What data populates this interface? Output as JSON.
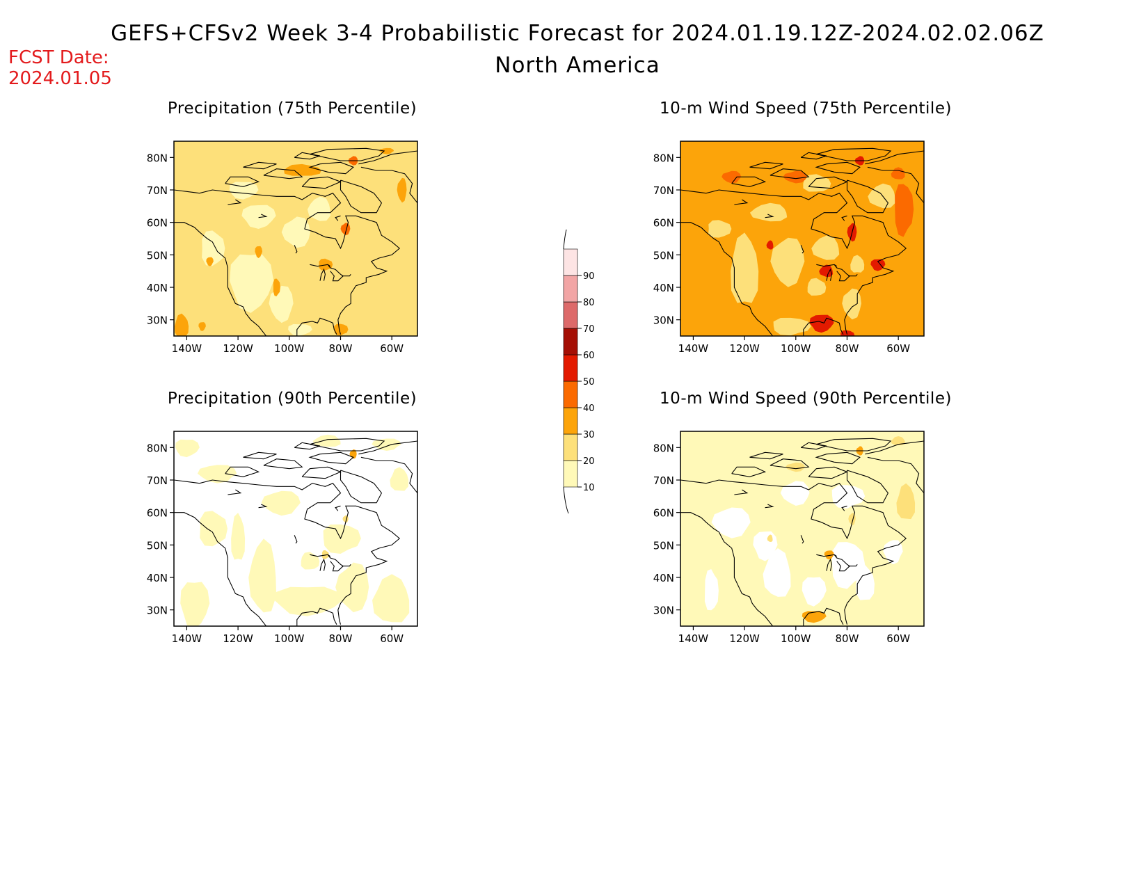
{
  "title": {
    "line1": "GEFS+CFSv2 Week 3-4 Probabilistic Forecast for 2024.01.19.12Z-2024.02.02.06Z",
    "line2": "North America"
  },
  "fcst": {
    "label": "FCST Date:",
    "date": "2024.01.05"
  },
  "axes": {
    "lat_ticks": [
      "30N",
      "40N",
      "50N",
      "60N",
      "70N",
      "80N"
    ],
    "lon_ticks": [
      "140W",
      "120W",
      "100W",
      "80W",
      "60W"
    ]
  },
  "panels": [
    {
      "id": "precip75",
      "title": "Precipitation (75th Percentile)",
      "base_class": 20
    },
    {
      "id": "wind75",
      "title": "10-m Wind Speed (75th Percentile)",
      "base_class": 30
    },
    {
      "id": "precip90",
      "title": "Precipitation (90th Percentile)",
      "base_class": 0
    },
    {
      "id": "wind90",
      "title": "10-m Wind Speed (90th Percentile)",
      "base_class": 10
    }
  ],
  "colorbar": {
    "labels": [
      "10",
      "20",
      "30",
      "40",
      "50",
      "60",
      "70",
      "80",
      "90"
    ],
    "colors": [
      "#fff9b8",
      "#fde07a",
      "#fca40a",
      "#fb6a00",
      "#e31a00",
      "#a50f05",
      "#dd6a6a",
      "#f2a5a5",
      "#fde4e4"
    ]
  },
  "class_colors": {
    "0": "#ffffff",
    "10": "#fff9b8",
    "20": "#fde07a",
    "30": "#fca40a",
    "40": "#fb6a00",
    "50": "#e31a00",
    "60": "#a50f05"
  }
}
